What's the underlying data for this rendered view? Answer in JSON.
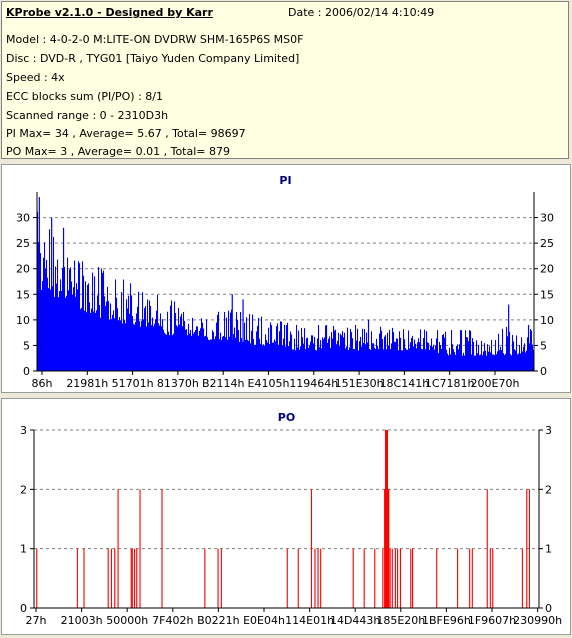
{
  "header": {
    "title": "KProbe v2.1.0 - Designed by Karr",
    "date": "Date : 2006/02/14 4:10:49",
    "lines": [
      "Model : 4-0-2-0 M:LITE-ON DVDRW SHM-165P6S MS0F",
      "Disc : DVD-R , TYG01 [Taiyo Yuden Company Limited]",
      "Speed : 4x",
      "ECC blocks sum (PI/PO) : 8/1",
      "Scanned range : 0 - 2310D3h",
      "PI Max= 34 , Average= 5.67 , Total= 98697",
      "PO Max= 3 , Average= 0.01 , Total= 879"
    ]
  },
  "colors": {
    "bar": "#0000ff",
    "po_bar": "#ff0000",
    "grid": "#808080",
    "axis": "#000000",
    "title": "#000080"
  },
  "chart_data": [
    {
      "type": "bar",
      "title": "PI",
      "ylim": [
        0,
        35
      ],
      "yticks": [
        0,
        5,
        10,
        15,
        20,
        25,
        30
      ],
      "xlim": [
        0,
        2298000
      ],
      "xtick_labels": [
        "86h",
        "21981h",
        "51701h",
        "81370h",
        "B2114h",
        "E4105h",
        "119464h",
        "151E30h",
        "18C141h",
        "1C7181h",
        "200E70h"
      ],
      "envelope": {
        "x": [
          0,
          50000,
          100000,
          150000,
          200000,
          250000,
          300000,
          350000,
          400000,
          450000,
          500000,
          550000,
          600000,
          700000,
          800000,
          900000,
          1000000,
          1100000,
          1200000,
          1300000,
          1400000,
          1500000,
          1600000,
          1700000,
          1800000,
          1900000,
          2000000,
          2100000,
          2200000,
          2298000
        ],
        "peak": [
          34,
          28,
          27,
          25,
          22,
          21,
          20,
          19,
          18,
          17,
          16,
          15,
          14,
          13,
          12,
          12,
          11,
          10,
          9,
          9,
          9,
          9,
          9,
          9,
          8,
          8,
          8,
          8,
          9,
          9
        ],
        "base": [
          16,
          15,
          14,
          13,
          12,
          11,
          10,
          10,
          9,
          9,
          8,
          8,
          7,
          7,
          6,
          6,
          5,
          5,
          4,
          4,
          4,
          4,
          4,
          4,
          4,
          3,
          3,
          3,
          3,
          4
        ]
      },
      "spikes": [
        {
          "x": 8000,
          "y": 34
        },
        {
          "x": 65000,
          "y": 30
        },
        {
          "x": 120000,
          "y": 28
        },
        {
          "x": 900000,
          "y": 15
        },
        {
          "x": 950000,
          "y": 14
        },
        {
          "x": 1530000,
          "y": 10
        },
        {
          "x": 2178000,
          "y": 13
        },
        {
          "x": 2270000,
          "y": 9
        }
      ]
    },
    {
      "type": "bar",
      "title": "PO",
      "ylim": [
        0,
        3
      ],
      "yticks": [
        0,
        1,
        2,
        3
      ],
      "xlim": [
        0,
        2298000
      ],
      "xtick_labels": [
        "27h",
        "21003h",
        "50000h",
        "7F402h",
        "B0221h",
        "E0E04h",
        "114E01h",
        "14D443h",
        "185E20h",
        "1BFE96h",
        "1F9607h",
        "230990h"
      ],
      "points": [
        {
          "x": 10000,
          "y": 1
        },
        {
          "x": 195000,
          "y": 1
        },
        {
          "x": 225000,
          "y": 1
        },
        {
          "x": 335000,
          "y": 1
        },
        {
          "x": 350000,
          "y": 1
        },
        {
          "x": 365000,
          "y": 1
        },
        {
          "x": 380000,
          "y": 2
        },
        {
          "x": 440000,
          "y": 1
        },
        {
          "x": 445000,
          "y": 1
        },
        {
          "x": 455000,
          "y": 1
        },
        {
          "x": 465000,
          "y": 1
        },
        {
          "x": 480000,
          "y": 2
        },
        {
          "x": 580000,
          "y": 2
        },
        {
          "x": 775000,
          "y": 1
        },
        {
          "x": 835000,
          "y": 1
        },
        {
          "x": 850000,
          "y": 1
        },
        {
          "x": 1150000,
          "y": 1
        },
        {
          "x": 1200000,
          "y": 1
        },
        {
          "x": 1260000,
          "y": 2
        },
        {
          "x": 1276000,
          "y": 1
        },
        {
          "x": 1290000,
          "y": 1
        },
        {
          "x": 1302000,
          "y": 1
        },
        {
          "x": 1450000,
          "y": 1
        },
        {
          "x": 1500000,
          "y": 1
        },
        {
          "x": 1548000,
          "y": 1
        },
        {
          "x": 1585000,
          "y": 1
        },
        {
          "x": 1593000,
          "y": 2
        },
        {
          "x": 1597000,
          "y": 3
        },
        {
          "x": 1600000,
          "y": 3
        },
        {
          "x": 1603000,
          "y": 3
        },
        {
          "x": 1606000,
          "y": 3
        },
        {
          "x": 1609000,
          "y": 2
        },
        {
          "x": 1612000,
          "y": 2
        },
        {
          "x": 1618000,
          "y": 1
        },
        {
          "x": 1628000,
          "y": 1
        },
        {
          "x": 1642000,
          "y": 1
        },
        {
          "x": 1652000,
          "y": 1
        },
        {
          "x": 1665000,
          "y": 1
        },
        {
          "x": 1712000,
          "y": 1
        },
        {
          "x": 1720000,
          "y": 1
        },
        {
          "x": 1830000,
          "y": 1
        },
        {
          "x": 1925000,
          "y": 1
        },
        {
          "x": 1980000,
          "y": 1
        },
        {
          "x": 1992000,
          "y": 1
        },
        {
          "x": 2060000,
          "y": 2
        },
        {
          "x": 2074000,
          "y": 1
        },
        {
          "x": 2085000,
          "y": 1
        },
        {
          "x": 2220000,
          "y": 1
        },
        {
          "x": 2240000,
          "y": 2
        },
        {
          "x": 2252000,
          "y": 2
        }
      ]
    }
  ]
}
